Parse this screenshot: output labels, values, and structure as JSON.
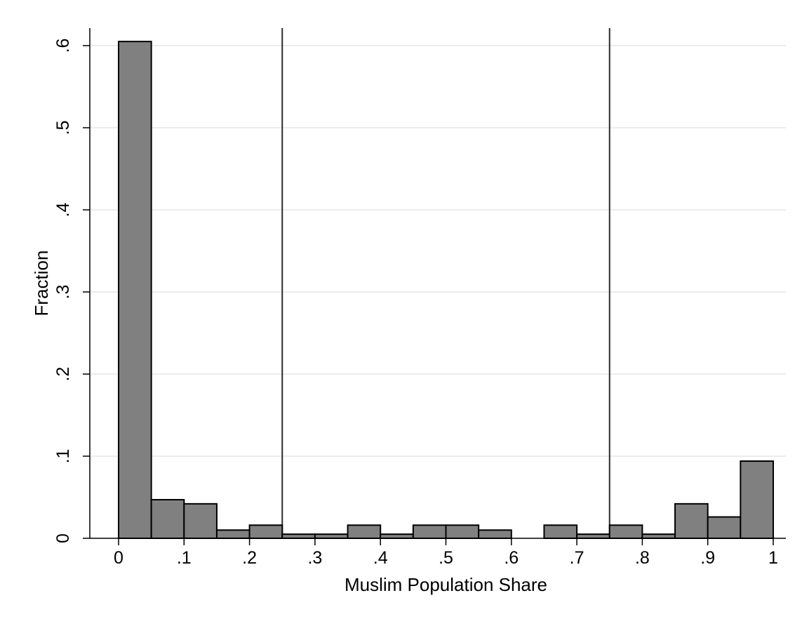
{
  "chart_data": {
    "type": "bar",
    "subtype": "histogram",
    "title": "",
    "xlabel": "Muslim Population Share",
    "ylabel": "Fraction",
    "xlim": [
      -0.08,
      1.02
    ],
    "ylim": [
      0,
      0.62
    ],
    "x_ticks": [
      0,
      0.1,
      0.2,
      0.3,
      0.4,
      0.5,
      0.6,
      0.7,
      0.8,
      0.9,
      1
    ],
    "x_tick_labels": [
      "0",
      ".1",
      ".2",
      ".3",
      ".4",
      ".5",
      ".6",
      ".7",
      ".8",
      ".9",
      "1"
    ],
    "y_ticks": [
      0,
      0.1,
      0.2,
      0.3,
      0.4,
      0.5,
      0.6
    ],
    "y_tick_labels": [
      "0",
      ".1",
      ".2",
      ".3",
      ".4",
      ".5",
      ".6"
    ],
    "grid": true,
    "bar_color": "#808080",
    "edge_color": "#000000",
    "reference_lines_x": [
      0.25,
      0.75
    ],
    "bins": [
      {
        "start": 0.0,
        "end": 0.05,
        "value": 0.605
      },
      {
        "start": 0.05,
        "end": 0.1,
        "value": 0.047
      },
      {
        "start": 0.1,
        "end": 0.15,
        "value": 0.042
      },
      {
        "start": 0.15,
        "end": 0.2,
        "value": 0.01
      },
      {
        "start": 0.2,
        "end": 0.25,
        "value": 0.016
      },
      {
        "start": 0.25,
        "end": 0.3,
        "value": 0.005
      },
      {
        "start": 0.3,
        "end": 0.35,
        "value": 0.005
      },
      {
        "start": 0.35,
        "end": 0.4,
        "value": 0.016
      },
      {
        "start": 0.4,
        "end": 0.45,
        "value": 0.005
      },
      {
        "start": 0.45,
        "end": 0.5,
        "value": 0.016
      },
      {
        "start": 0.5,
        "end": 0.55,
        "value": 0.016
      },
      {
        "start": 0.55,
        "end": 0.6,
        "value": 0.01
      },
      {
        "start": 0.6,
        "end": 0.65,
        "value": 0
      },
      {
        "start": 0.65,
        "end": 0.7,
        "value": 0.016
      },
      {
        "start": 0.7,
        "end": 0.75,
        "value": 0.005
      },
      {
        "start": 0.75,
        "end": 0.8,
        "value": 0.016
      },
      {
        "start": 0.8,
        "end": 0.85,
        "value": 0.005
      },
      {
        "start": 0.85,
        "end": 0.9,
        "value": 0.042
      },
      {
        "start": 0.9,
        "end": 0.95,
        "value": 0.026
      },
      {
        "start": 0.95,
        "end": 1.0,
        "value": 0.094
      }
    ]
  }
}
